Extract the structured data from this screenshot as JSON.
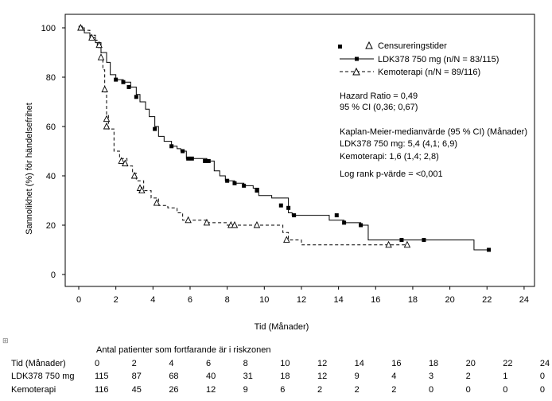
{
  "chart_data": {
    "type": "line",
    "kind": "kaplan-meier",
    "xlabel": "Tid (Månader)",
    "ylabel": "Sannolikhet (%) för händelsefrihet",
    "xlim": [
      0,
      24
    ],
    "ylim": [
      0,
      100
    ],
    "x_ticks": [
      0,
      2,
      4,
      6,
      8,
      10,
      12,
      14,
      16,
      18,
      20,
      22,
      24
    ],
    "y_ticks": [
      0,
      20,
      40,
      60,
      80,
      100
    ],
    "legend": {
      "position": "top-right",
      "censor_label": "Censureringstider",
      "entries": [
        {
          "name": "LDK378 750 mg (n/N = 83/115)",
          "style": "solid",
          "marker": "square"
        },
        {
          "name": "Kemoterapi  (n/N = 89/116)",
          "style": "dashed",
          "marker": "triangle"
        }
      ]
    },
    "annotations": {
      "hazard_ratio": "Hazard Ratio  = 0,49",
      "ci": "95 % CI (0,36; 0,67)",
      "km_title": "Kaplan-Meier-medianvärde (95 % CI) (Månader)",
      "km_ldk": "LDK378 750 mg: 5,4 (4,1; 6,9)",
      "km_chemo": "Kemoterapi:  1,6 (1,4; 2,8)",
      "logrank": "Log rank p-värde = <0,001"
    },
    "series": [
      {
        "name": "LDK378 750 mg",
        "style": "solid",
        "steps": [
          [
            0,
            100
          ],
          [
            0.3,
            98
          ],
          [
            0.6,
            96
          ],
          [
            0.9,
            94
          ],
          [
            1.2,
            90
          ],
          [
            1.5,
            86
          ],
          [
            1.7,
            81
          ],
          [
            2.0,
            79
          ],
          [
            2.4,
            78
          ],
          [
            2.8,
            76
          ],
          [
            3.1,
            73
          ],
          [
            3.3,
            70
          ],
          [
            3.6,
            67
          ],
          [
            3.8,
            64
          ],
          [
            4.1,
            60
          ],
          [
            4.3,
            56
          ],
          [
            4.6,
            54
          ],
          [
            5.0,
            52
          ],
          [
            5.3,
            51
          ],
          [
            5.5,
            50
          ],
          [
            5.8,
            47
          ],
          [
            6.4,
            47
          ],
          [
            6.9,
            46
          ],
          [
            7.3,
            42
          ],
          [
            7.6,
            40
          ],
          [
            7.9,
            38
          ],
          [
            8.4,
            37
          ],
          [
            8.9,
            36
          ],
          [
            9.4,
            35
          ],
          [
            9.7,
            32
          ],
          [
            10.4,
            31
          ],
          [
            10.8,
            31
          ],
          [
            11.3,
            25
          ],
          [
            11.5,
            24
          ],
          [
            12.0,
            24
          ],
          [
            13.5,
            22
          ],
          [
            14.0,
            22
          ],
          [
            14.3,
            21
          ],
          [
            15.2,
            20
          ],
          [
            15.6,
            14
          ],
          [
            18.6,
            14
          ],
          [
            19.0,
            14
          ],
          [
            21.3,
            10
          ],
          [
            22.1,
            10
          ]
        ],
        "censored": [
          [
            0.1,
            100
          ],
          [
            2.0,
            79
          ],
          [
            2.4,
            78
          ],
          [
            2.7,
            76
          ],
          [
            3.1,
            72
          ],
          [
            4.1,
            59
          ],
          [
            5.0,
            52
          ],
          [
            5.6,
            50
          ],
          [
            5.9,
            47
          ],
          [
            6.1,
            47
          ],
          [
            6.8,
            46
          ],
          [
            7.0,
            46
          ],
          [
            8.0,
            38
          ],
          [
            8.4,
            37
          ],
          [
            8.9,
            36
          ],
          [
            9.6,
            34
          ],
          [
            10.9,
            28
          ],
          [
            11.3,
            27
          ],
          [
            11.6,
            24
          ],
          [
            13.9,
            24
          ],
          [
            14.3,
            21
          ],
          [
            15.2,
            20
          ],
          [
            17.4,
            14
          ],
          [
            18.6,
            14
          ],
          [
            22.1,
            10
          ]
        ]
      },
      {
        "name": "Kemoterapi",
        "style": "dashed",
        "steps": [
          [
            0,
            100
          ],
          [
            0.3,
            99
          ],
          [
            0.6,
            97
          ],
          [
            0.9,
            95
          ],
          [
            1.0,
            92
          ],
          [
            1.2,
            87
          ],
          [
            1.3,
            83
          ],
          [
            1.4,
            74
          ],
          [
            1.5,
            65
          ],
          [
            1.6,
            59
          ],
          [
            1.9,
            50
          ],
          [
            2.2,
            47
          ],
          [
            2.6,
            44
          ],
          [
            2.9,
            41
          ],
          [
            3.1,
            38
          ],
          [
            3.5,
            34
          ],
          [
            3.9,
            31
          ],
          [
            4.3,
            28
          ],
          [
            4.8,
            27
          ],
          [
            5.3,
            25
          ],
          [
            5.6,
            22
          ],
          [
            6.9,
            21
          ],
          [
            8.0,
            20
          ],
          [
            11.0,
            17
          ],
          [
            11.3,
            14
          ],
          [
            12.0,
            12
          ],
          [
            17.3,
            12
          ],
          [
            17.8,
            12
          ]
        ],
        "censored": [
          [
            0.1,
            100
          ],
          [
            0.7,
            96
          ],
          [
            1.1,
            93
          ],
          [
            1.2,
            88
          ],
          [
            1.4,
            75
          ],
          [
            1.5,
            63
          ],
          [
            1.5,
            60
          ],
          [
            2.3,
            46
          ],
          [
            2.5,
            45
          ],
          [
            3.0,
            40
          ],
          [
            3.3,
            35
          ],
          [
            3.4,
            34
          ],
          [
            4.2,
            29
          ],
          [
            5.9,
            22
          ],
          [
            6.9,
            21
          ],
          [
            8.2,
            20
          ],
          [
            8.4,
            20
          ],
          [
            9.6,
            20
          ],
          [
            11.2,
            14
          ],
          [
            16.7,
            12
          ],
          [
            17.7,
            12
          ]
        ]
      }
    ]
  },
  "risk_table": {
    "header": "Antal patienter som fortfarande är i riskzonen",
    "row_header": "Tid (Månader)",
    "times": [
      "0",
      "2",
      "4",
      "6",
      "8",
      "10",
      "12",
      "14",
      "16",
      "18",
      "20",
      "22",
      "24"
    ],
    "rows": [
      {
        "label": "LDK378 750 mg",
        "values": [
          "115",
          "87",
          "68",
          "40",
          "31",
          "18",
          "12",
          "9",
          "4",
          "3",
          "2",
          "1",
          "0"
        ]
      },
      {
        "label": "Kemoterapi",
        "values": [
          "116",
          "45",
          "26",
          "12",
          "9",
          "6",
          "2",
          "2",
          "2",
          "0",
          "0",
          "0",
          "0"
        ]
      }
    ]
  }
}
